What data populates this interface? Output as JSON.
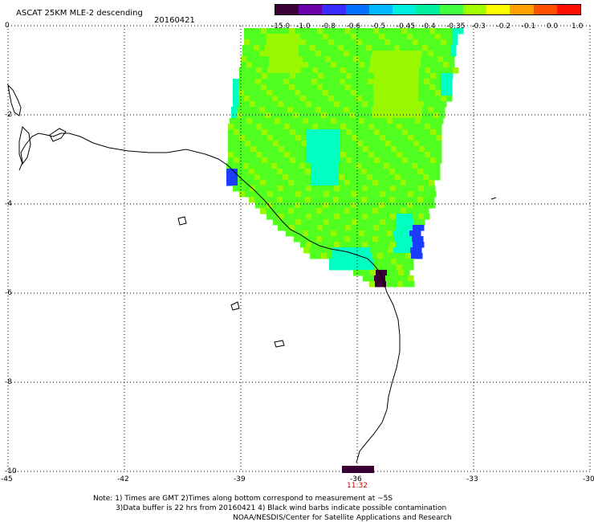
{
  "header": {
    "title": "ASCAT 25KM MLE-2 descending",
    "date": "20160421"
  },
  "colorbar": {
    "labels": [
      "-15.0",
      "-1.0",
      "-0.8",
      "-0.6",
      "-0.5",
      "-0.45",
      "-0.4",
      "-0.35",
      "-0.3",
      "-0.2",
      "-0.1",
      "0.0",
      "1.0"
    ],
    "colors": [
      "#3a0036",
      "#6a00a8",
      "#3a2cff",
      "#0070ff",
      "#00b8ff",
      "#00f0e0",
      "#00f0a0",
      "#40ff40",
      "#a0ff00",
      "#ffff00",
      "#ffa000",
      "#ff5000",
      "#ff1000"
    ]
  },
  "map": {
    "x_ticks": [
      "-45",
      "-42",
      "-39",
      "-36",
      "-33",
      "-30"
    ],
    "y_ticks": [
      "0",
      "-2",
      "-4",
      "-6",
      "-8",
      "-10"
    ],
    "time_label": "11:32",
    "colors": {
      "land_coast": "#000000",
      "grid": "#000000",
      "swath_main": "#50ff20",
      "swath_light": "#99f700",
      "swath_cyan": "#00ffc0",
      "swath_blue": "#1a3cff",
      "swath_dark": "#3a0036"
    }
  },
  "notes": {
    "line1": "Note: 1) Times are GMT 2)Times along bottom correspond to measurement at ~5S",
    "line2": "3)Data buffer is 22 hrs from 20160421 4) Black wind barbs indicate possible contamination",
    "credit": "NOAA/NESDIS/Center for Satellite Applications and Research"
  }
}
